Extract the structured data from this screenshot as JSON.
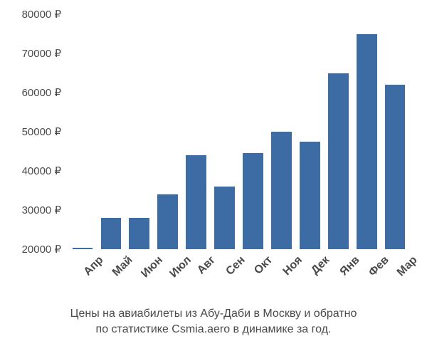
{
  "chart": {
    "type": "bar",
    "background_color": "#ffffff",
    "bar_color": "#3d6ca4",
    "text_color": "#4a4a4a",
    "font_family": "Arial",
    "y_axis": {
      "min": 20000,
      "max": 80000,
      "tick_step": 10000,
      "tick_suffix": " ₽",
      "tick_fontsize": 15
    },
    "x_labels_fontsize": 16,
    "x_labels_fontweight": "600",
    "x_labels_rotation_deg": -45,
    "bar_width_ratio": 0.72,
    "categories": [
      "Апр",
      "Май",
      "Июн",
      "Июл",
      "Авг",
      "Сен",
      "Окт",
      "Ноя",
      "Дек",
      "Янв",
      "Фев",
      "Мар"
    ],
    "values": [
      20000,
      28000,
      28000,
      34000,
      44000,
      36000,
      44500,
      50000,
      47500,
      65000,
      75000,
      62000
    ],
    "caption_line1": "Цены на авиабилеты из Абу-Даби в Москву и обратно",
    "caption_line2": "по статистике Csmia.aero в динамике за год.",
    "caption_fontsize": 16
  }
}
